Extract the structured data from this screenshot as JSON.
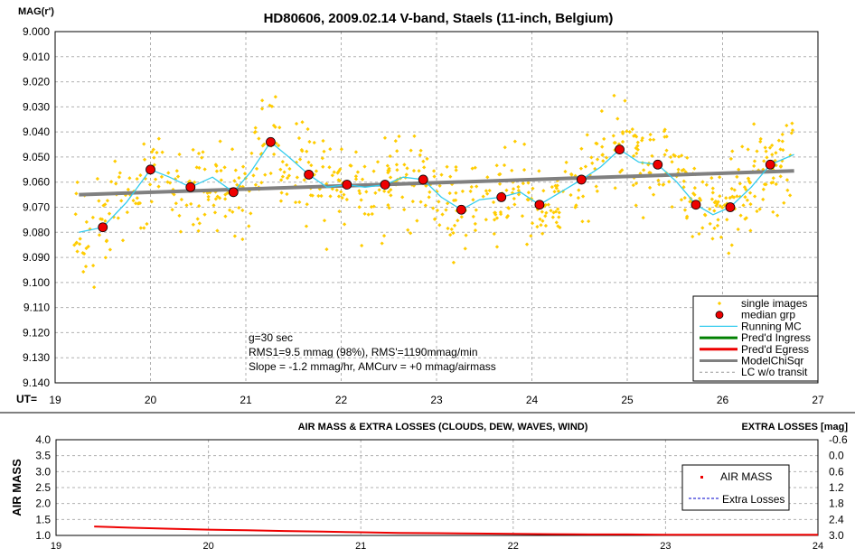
{
  "chart_data": [
    {
      "type": "scatter",
      "title": "HD80606, 2009.02.14 V-band, Staels (11-inch, Belgium)",
      "ylabel": "MAG(r')",
      "xlabel": "UT=",
      "xlim": [
        19,
        27
      ],
      "ylim": [
        9.14,
        9.0
      ],
      "y_inverted": true,
      "x_ticks": [
        "19",
        "20",
        "21",
        "22",
        "23",
        "24",
        "25",
        "26",
        "27"
      ],
      "y_ticks": [
        "9.000",
        "9.010",
        "9.020",
        "9.030",
        "9.040",
        "9.050",
        "9.060",
        "9.070",
        "9.080",
        "9.090",
        "9.100",
        "9.110",
        "9.120",
        "9.130",
        "9.140"
      ],
      "grid": true,
      "legend_position": "bottom-right",
      "legend": [
        "single images",
        "median grp",
        "Running MC",
        "Pred'd Ingress",
        "Pred'd Egress",
        "ModelChiSqr",
        "LC w/o transit"
      ],
      "annotations": [
        "g=30 sec",
        "RMS1=9.5 mmag (98%), RMS'=1190mmag/min",
        "Slope = -1.2 mmag/hr, AMCurv = +0 mmag/airmass"
      ],
      "series": [
        {
          "name": "median grp",
          "x": [
            19.5,
            20.0,
            20.42,
            20.87,
            21.26,
            21.66,
            22.06,
            22.46,
            22.86,
            23.26,
            23.68,
            24.08,
            24.52,
            24.92,
            25.32,
            25.72,
            26.08,
            26.5
          ],
          "y": [
            9.078,
            9.055,
            9.062,
            9.064,
            9.044,
            9.057,
            9.061,
            9.061,
            9.059,
            9.071,
            9.066,
            9.069,
            9.059,
            9.047,
            9.053,
            9.069,
            9.07,
            9.053
          ]
        },
        {
          "name": "Running MC",
          "x": [
            19.25,
            19.5,
            19.75,
            20.0,
            20.2,
            20.42,
            20.65,
            20.87,
            21.05,
            21.26,
            21.45,
            21.66,
            21.85,
            22.06,
            22.25,
            22.46,
            22.65,
            22.86,
            23.05,
            23.26,
            23.45,
            23.68,
            23.88,
            24.08,
            24.3,
            24.52,
            24.72,
            24.92,
            25.12,
            25.32,
            25.52,
            25.72,
            25.9,
            26.08,
            26.3,
            26.5,
            26.75
          ],
          "y": [
            9.08,
            9.078,
            9.068,
            9.055,
            9.058,
            9.062,
            9.058,
            9.064,
            9.056,
            9.044,
            9.05,
            9.057,
            9.062,
            9.061,
            9.062,
            9.061,
            9.058,
            9.059,
            9.066,
            9.071,
            9.067,
            9.066,
            9.064,
            9.069,
            9.064,
            9.059,
            9.054,
            9.047,
            9.052,
            9.053,
            9.06,
            9.069,
            9.073,
            9.07,
            9.062,
            9.053,
            9.049
          ]
        },
        {
          "name": "ModelChiSqr",
          "x": [
            19.25,
            26.75
          ],
          "y": [
            9.065,
            9.0555
          ]
        },
        {
          "name": "single images",
          "x": [],
          "y": []
        }
      ]
    },
    {
      "type": "line",
      "title": "AIR MASS & EXTRA LOSSES (CLOUDS, DEW, WAVES, WIND)",
      "ylabel": "AIR MASS",
      "y2label": "EXTRA LOSSES [mag]",
      "xlim": [
        19,
        24
      ],
      "ylim": [
        1.0,
        4.0
      ],
      "y2lim": [
        3.0,
        -0.6
      ],
      "x_ticks": [
        "19",
        "20",
        "21",
        "22",
        "23",
        "24"
      ],
      "y_ticks": [
        "4.0",
        "3.5",
        "3.0",
        "2.5",
        "2.0",
        "1.5",
        "1.0"
      ],
      "y2_ticks": [
        "-0.6",
        "0.0",
        "0.6",
        "1.2",
        "1.8",
        "2.4",
        "3.0"
      ],
      "grid": true,
      "legend_position": "right",
      "legend": [
        "AIR MASS",
        "Extra Losses"
      ],
      "series": [
        {
          "name": "AIR MASS",
          "x": [
            19.25,
            19.5,
            19.75,
            20.0,
            20.25,
            20.5,
            20.75,
            21.0,
            21.25,
            21.5,
            21.75,
            22.0,
            22.25,
            22.5,
            22.75,
            23.0,
            23.25,
            23.5,
            23.75,
            24.0
          ],
          "y": [
            1.28,
            1.24,
            1.21,
            1.18,
            1.16,
            1.14,
            1.12,
            1.1,
            1.08,
            1.07,
            1.06,
            1.05,
            1.04,
            1.03,
            1.03,
            1.02,
            1.02,
            1.02,
            1.02,
            1.02
          ]
        }
      ]
    }
  ],
  "colors": {
    "single": "#ffcc00",
    "median_fill": "#ee0000",
    "running": "#33ccee",
    "model": "#808080",
    "ingress": "#008000",
    "egress": "#ee0000",
    "airmass": "#ee0000",
    "losses": "#0000cc"
  }
}
